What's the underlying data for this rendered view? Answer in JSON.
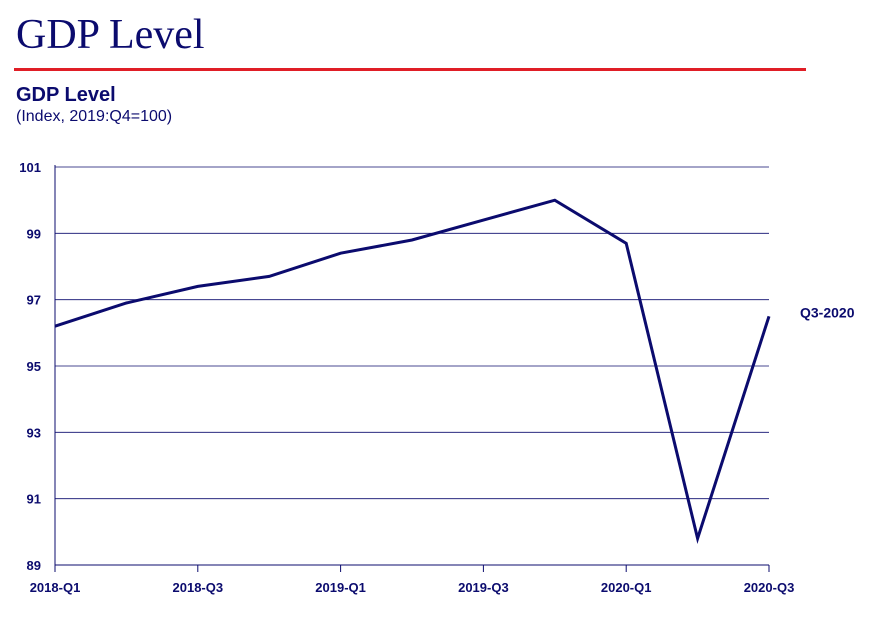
{
  "header": {
    "slide_title": "GDP Level",
    "colors": {
      "title": "#0b0b6e",
      "rule": "#e01e26",
      "line": "#0b0b6e"
    }
  },
  "chart_data": {
    "type": "line",
    "title": "GDP Level",
    "subtitle": "(Index, 2019:Q4=100)",
    "x": [
      "2018-Q1",
      "2018-Q2",
      "2018-Q3",
      "2018-Q4",
      "2019-Q1",
      "2019-Q2",
      "2019-Q3",
      "2019-Q4",
      "2020-Q1",
      "2020-Q2",
      "2020-Q3"
    ],
    "x_tick_labels": [
      "2018-Q1",
      "2018-Q3",
      "2019-Q1",
      "2019-Q3",
      "2020-Q1",
      "2020-Q3"
    ],
    "series": [
      {
        "values": [
          96.2,
          96.9,
          97.4,
          97.7,
          98.4,
          98.8,
          99.4,
          100.0,
          98.7,
          89.8,
          96.5
        ]
      }
    ],
    "ylim": [
      89,
      101
    ],
    "y_ticks": [
      89,
      91,
      93,
      95,
      97,
      99,
      101
    ],
    "grid": true,
    "annotations": [
      {
        "text": "Q3-2020",
        "x": "2020-Q3",
        "y": 96.5
      }
    ]
  }
}
